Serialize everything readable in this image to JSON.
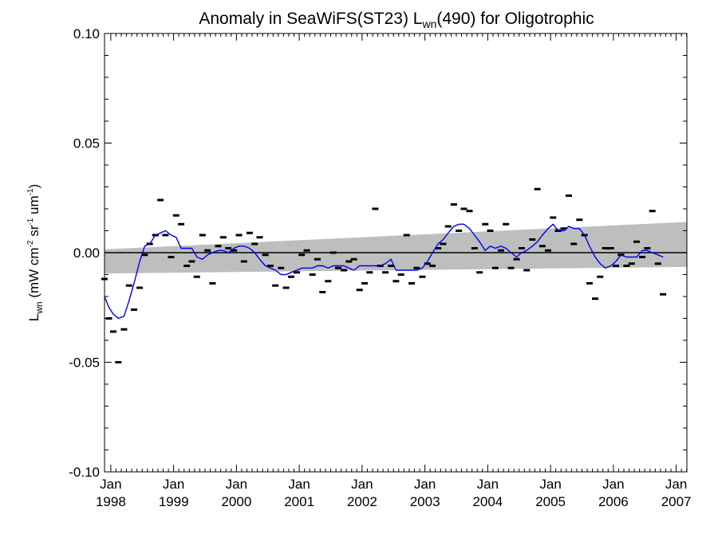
{
  "chart_data": {
    "type": "scatter",
    "title": "Anomaly in SeaWiFS(ST23) L",
    "title_sub": "wn",
    "title_tail": "(490) for Oligotrophic",
    "ylabel_main": "L",
    "ylabel_sub": "wn",
    "ylabel_units": " (mW cm",
    "ylabel_sup1": "-2",
    "ylabel_units2": " sr",
    "ylabel_sup2": "-1",
    "ylabel_units3": " um",
    "ylabel_sup3": "-1",
    "ylabel_close": ")",
    "ylim": [
      -0.1,
      0.1
    ],
    "xlim": [
      1997.9,
      2007.17
    ],
    "yticks": [
      {
        "v": 0.1,
        "label": "0.10"
      },
      {
        "v": 0.05,
        "label": "0.05"
      },
      {
        "v": 0.0,
        "label": "0.00"
      },
      {
        "v": -0.05,
        "label": "-0.05"
      },
      {
        "v": -0.1,
        "label": "-0.10"
      }
    ],
    "xticks": [
      {
        "v": 1998,
        "month": "Jan",
        "year": "1998"
      },
      {
        "v": 1999,
        "month": "Jan",
        "year": "1999"
      },
      {
        "v": 2000,
        "month": "Jan",
        "year": "2000"
      },
      {
        "v": 2001,
        "month": "Jan",
        "year": "2001"
      },
      {
        "v": 2002,
        "month": "Jan",
        "year": "2002"
      },
      {
        "v": 2003,
        "month": "Jan",
        "year": "2003"
      },
      {
        "v": 2004,
        "month": "Jan",
        "year": "2004"
      },
      {
        "v": 2005,
        "month": "Jan",
        "year": "2005"
      },
      {
        "v": 2006,
        "month": "Jan",
        "year": "2006"
      },
      {
        "v": 2007,
        "month": "Jan",
        "year": "2007"
      }
    ],
    "band": {
      "color": "#bebebe",
      "start": {
        "x": 1997.9,
        "low": -0.0095,
        "high": 0.0015
      },
      "end": {
        "x": 2007.17,
        "low": -0.0065,
        "high": 0.014
      }
    },
    "zero_line": 0.0,
    "points_color": "#000000",
    "points": [
      [
        1997.9,
        -0.012
      ],
      [
        1997.97,
        -0.03
      ],
      [
        1998.04,
        -0.036
      ],
      [
        1998.12,
        -0.05
      ],
      [
        1998.21,
        -0.035
      ],
      [
        1998.29,
        -0.015
      ],
      [
        1998.37,
        -0.026
      ],
      [
        1998.46,
        -0.016
      ],
      [
        1998.54,
        -0.001
      ],
      [
        1998.62,
        0.004
      ],
      [
        1998.71,
        0.008
      ],
      [
        1998.79,
        0.024
      ],
      [
        1998.87,
        0.008
      ],
      [
        1998.96,
        -0.002
      ],
      [
        1999.04,
        0.017
      ],
      [
        1999.12,
        0.013
      ],
      [
        1999.21,
        -0.006
      ],
      [
        1999.29,
        -0.004
      ],
      [
        1999.37,
        -0.011
      ],
      [
        1999.46,
        0.008
      ],
      [
        1999.54,
        0.001
      ],
      [
        1999.62,
        -0.014
      ],
      [
        1999.71,
        0.003
      ],
      [
        1999.79,
        0.007
      ],
      [
        1999.87,
        0.002
      ],
      [
        1999.96,
        0.001
      ],
      [
        2000.04,
        0.008
      ],
      [
        2000.12,
        -0.004
      ],
      [
        2000.21,
        0.009
      ],
      [
        2000.29,
        0.004
      ],
      [
        2000.37,
        0.007
      ],
      [
        2000.46,
        -0.001
      ],
      [
        2000.54,
        -0.006
      ],
      [
        2000.62,
        -0.015
      ],
      [
        2000.71,
        -0.007
      ],
      [
        2000.79,
        -0.016
      ],
      [
        2000.87,
        -0.011
      ],
      [
        2000.96,
        -0.009
      ],
      [
        2001.04,
        -0.001
      ],
      [
        2001.12,
        0.001
      ],
      [
        2001.21,
        -0.01
      ],
      [
        2001.29,
        -0.003
      ],
      [
        2001.37,
        -0.018
      ],
      [
        2001.46,
        -0.013
      ],
      [
        2001.54,
        0.0
      ],
      [
        2001.62,
        -0.007
      ],
      [
        2001.71,
        -0.008
      ],
      [
        2001.79,
        -0.004
      ],
      [
        2001.87,
        -0.003
      ],
      [
        2001.96,
        -0.017
      ],
      [
        2002.04,
        -0.014
      ],
      [
        2002.12,
        -0.009
      ],
      [
        2002.21,
        0.02
      ],
      [
        2002.29,
        -0.006
      ],
      [
        2002.37,
        -0.009
      ],
      [
        2002.46,
        -0.006
      ],
      [
        2002.54,
        -0.013
      ],
      [
        2002.62,
        -0.01
      ],
      [
        2002.71,
        0.008
      ],
      [
        2002.79,
        -0.014
      ],
      [
        2002.87,
        -0.007
      ],
      [
        2002.96,
        -0.011
      ],
      [
        2003.04,
        -0.005
      ],
      [
        2003.12,
        -0.006
      ],
      [
        2003.21,
        0.002
      ],
      [
        2003.29,
        0.004
      ],
      [
        2003.37,
        0.012
      ],
      [
        2003.46,
        0.022
      ],
      [
        2003.54,
        0.01
      ],
      [
        2003.62,
        0.02
      ],
      [
        2003.71,
        0.019
      ],
      [
        2003.79,
        0.002
      ],
      [
        2003.87,
        -0.009
      ],
      [
        2003.96,
        0.013
      ],
      [
        2004.04,
        0.01
      ],
      [
        2004.12,
        -0.007
      ],
      [
        2004.21,
        0.001
      ],
      [
        2004.29,
        0.013
      ],
      [
        2004.37,
        -0.007
      ],
      [
        2004.46,
        -0.003
      ],
      [
        2004.54,
        0.002
      ],
      [
        2004.62,
        -0.008
      ],
      [
        2004.71,
        0.006
      ],
      [
        2004.79,
        0.029
      ],
      [
        2004.87,
        0.003
      ],
      [
        2004.96,
        0.001
      ],
      [
        2005.04,
        0.016
      ],
      [
        2005.12,
        0.01
      ],
      [
        2005.21,
        0.011
      ],
      [
        2005.29,
        0.026
      ],
      [
        2005.37,
        0.004
      ],
      [
        2005.46,
        0.015
      ],
      [
        2005.54,
        0.008
      ],
      [
        2005.62,
        -0.014
      ],
      [
        2005.71,
        -0.021
      ],
      [
        2005.79,
        -0.011
      ],
      [
        2005.87,
        0.002
      ],
      [
        2005.96,
        0.002
      ],
      [
        2006.04,
        -0.006
      ],
      [
        2006.12,
        -0.001
      ],
      [
        2006.21,
        -0.006
      ],
      [
        2006.29,
        -0.005
      ],
      [
        2006.37,
        0.005
      ],
      [
        2006.46,
        -0.002
      ],
      [
        2006.54,
        0.002
      ],
      [
        2006.62,
        0.019
      ],
      [
        2006.71,
        -0.005
      ],
      [
        2006.79,
        -0.019
      ]
    ],
    "line_color": "#0000ee",
    "line": [
      [
        1997.9,
        -0.02
      ],
      [
        1997.97,
        -0.025
      ],
      [
        1998.04,
        -0.028
      ],
      [
        1998.12,
        -0.03
      ],
      [
        1998.21,
        -0.029
      ],
      [
        1998.29,
        -0.022
      ],
      [
        1998.37,
        -0.014
      ],
      [
        1998.46,
        -0.004
      ],
      [
        1998.54,
        0.003
      ],
      [
        1998.62,
        0.004
      ],
      [
        1998.71,
        0.008
      ],
      [
        1998.79,
        0.009
      ],
      [
        1998.87,
        0.01
      ],
      [
        1998.96,
        0.008
      ],
      [
        1999.04,
        0.007
      ],
      [
        1999.12,
        0.002
      ],
      [
        1999.21,
        0.002
      ],
      [
        1999.29,
        0.002
      ],
      [
        1999.37,
        -0.002
      ],
      [
        1999.46,
        -0.003
      ],
      [
        1999.54,
        -0.001
      ],
      [
        1999.62,
        0.0
      ],
      [
        1999.71,
        0.001
      ],
      [
        1999.79,
        0.001
      ],
      [
        1999.87,
        0.0
      ],
      [
        1999.96,
        0.002
      ],
      [
        2000.04,
        0.003
      ],
      [
        2000.12,
        0.003
      ],
      [
        2000.21,
        0.002
      ],
      [
        2000.29,
        0.0
      ],
      [
        2000.37,
        -0.003
      ],
      [
        2000.46,
        -0.006
      ],
      [
        2000.54,
        -0.007
      ],
      [
        2000.62,
        -0.008
      ],
      [
        2000.71,
        -0.01
      ],
      [
        2000.79,
        -0.01
      ],
      [
        2000.87,
        -0.009
      ],
      [
        2000.96,
        -0.008
      ],
      [
        2001.04,
        -0.007
      ],
      [
        2001.12,
        -0.007
      ],
      [
        2001.21,
        -0.007
      ],
      [
        2001.29,
        -0.006
      ],
      [
        2001.37,
        -0.006
      ],
      [
        2001.46,
        -0.007
      ],
      [
        2001.54,
        -0.006
      ],
      [
        2001.62,
        -0.006
      ],
      [
        2001.71,
        -0.006
      ],
      [
        2001.79,
        -0.007
      ],
      [
        2001.87,
        -0.008
      ],
      [
        2001.96,
        -0.006
      ],
      [
        2002.04,
        -0.006
      ],
      [
        2002.12,
        -0.006
      ],
      [
        2002.21,
        -0.006
      ],
      [
        2002.29,
        -0.006
      ],
      [
        2002.37,
        -0.005
      ],
      [
        2002.46,
        -0.003
      ],
      [
        2002.54,
        -0.008
      ],
      [
        2002.62,
        -0.008
      ],
      [
        2002.71,
        -0.008
      ],
      [
        2002.79,
        -0.008
      ],
      [
        2002.87,
        -0.008
      ],
      [
        2002.96,
        -0.007
      ],
      [
        2003.04,
        -0.004
      ],
      [
        2003.12,
        0.0
      ],
      [
        2003.21,
        0.004
      ],
      [
        2003.29,
        0.006
      ],
      [
        2003.37,
        0.009
      ],
      [
        2003.46,
        0.012
      ],
      [
        2003.54,
        0.013
      ],
      [
        2003.62,
        0.013
      ],
      [
        2003.71,
        0.011
      ],
      [
        2003.79,
        0.008
      ],
      [
        2003.87,
        0.005
      ],
      [
        2003.96,
        0.001
      ],
      [
        2004.04,
        0.003
      ],
      [
        2004.12,
        0.002
      ],
      [
        2004.21,
        0.003
      ],
      [
        2004.29,
        0.002
      ],
      [
        2004.37,
        0.0
      ],
      [
        2004.46,
        -0.002
      ],
      [
        2004.54,
        0.0
      ],
      [
        2004.62,
        0.001
      ],
      [
        2004.71,
        0.003
      ],
      [
        2004.79,
        0.005
      ],
      [
        2004.87,
        0.008
      ],
      [
        2004.96,
        0.011
      ],
      [
        2005.04,
        0.013
      ],
      [
        2005.12,
        0.01
      ],
      [
        2005.21,
        0.01
      ],
      [
        2005.29,
        0.012
      ],
      [
        2005.37,
        0.011
      ],
      [
        2005.46,
        0.011
      ],
      [
        2005.54,
        0.008
      ],
      [
        2005.62,
        0.003
      ],
      [
        2005.71,
        -0.002
      ],
      [
        2005.79,
        -0.005
      ],
      [
        2005.87,
        -0.007
      ],
      [
        2005.96,
        -0.006
      ],
      [
        2006.04,
        -0.004
      ],
      [
        2006.12,
        -0.001
      ],
      [
        2006.21,
        -0.002
      ],
      [
        2006.29,
        -0.002
      ],
      [
        2006.37,
        -0.002
      ],
      [
        2006.46,
        0.001
      ],
      [
        2006.54,
        0.001
      ],
      [
        2006.62,
        0.0
      ],
      [
        2006.71,
        -0.001
      ],
      [
        2006.79,
        -0.002
      ]
    ]
  }
}
